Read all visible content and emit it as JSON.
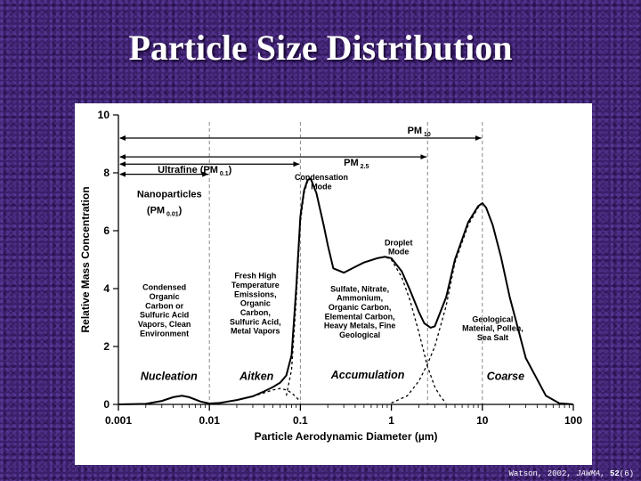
{
  "slide": {
    "title": "Particle Size Distribution",
    "citation": {
      "author": "Watson, 2002, ",
      "journal": "JAWMA",
      "sep": ", ",
      "volume": "52",
      "issue": "(6)"
    }
  },
  "colors": {
    "background": "#3a1f6b",
    "title": "#ffffff",
    "plot": "#000000",
    "guides": "#888888"
  },
  "chart_data": {
    "type": "line",
    "xlabel": "Particle Aerodynamic Diameter (µm)",
    "ylabel": "Relative Mass Concentration",
    "x_scale": "log",
    "xlim": [
      0.001,
      100
    ],
    "ylim": [
      0,
      10
    ],
    "x_ticks": [
      {
        "value": 0.001,
        "label": "0.001"
      },
      {
        "value": 0.01,
        "label": "0.01"
      },
      {
        "value": 0.1,
        "label": "0.1"
      },
      {
        "value": 1,
        "label": "1"
      },
      {
        "value": 10,
        "label": "10"
      },
      {
        "value": 100,
        "label": "100"
      }
    ],
    "y_ticks": [
      {
        "value": 0,
        "label": "0"
      },
      {
        "value": 2,
        "label": "2"
      },
      {
        "value": 4,
        "label": "4"
      },
      {
        "value": 6,
        "label": "6"
      },
      {
        "value": 8,
        "label": "8"
      },
      {
        "value": 10,
        "label": "10"
      }
    ],
    "grid": false,
    "total_curve": {
      "x": [
        0.001,
        0.002,
        0.003,
        0.004,
        0.005,
        0.006,
        0.008,
        0.01,
        0.013,
        0.02,
        0.03,
        0.04,
        0.05,
        0.06,
        0.07,
        0.08,
        0.09,
        0.1,
        0.11,
        0.12,
        0.13,
        0.15,
        0.18,
        0.2,
        0.23,
        0.3,
        0.4,
        0.5,
        0.7,
        0.85,
        1,
        1.3,
        1.6,
        2,
        2.3,
        2.7,
        3,
        4,
        5,
        7,
        9,
        10,
        11,
        13,
        16,
        20,
        30,
        50,
        70,
        100
      ],
      "y": [
        0,
        0.02,
        0.12,
        0.25,
        0.3,
        0.25,
        0.1,
        0.03,
        0.05,
        0.15,
        0.28,
        0.45,
        0.6,
        0.75,
        1.0,
        1.7,
        4.0,
        6.5,
        7.4,
        7.75,
        7.8,
        7.3,
        6.2,
        5.5,
        4.7,
        4.55,
        4.75,
        4.9,
        5.05,
        5.1,
        5.05,
        4.6,
        3.95,
        3.2,
        2.8,
        2.65,
        2.7,
        3.7,
        5.0,
        6.3,
        6.85,
        6.95,
        6.8,
        6.2,
        5.1,
        3.7,
        1.6,
        0.3,
        0.04,
        0.0
      ]
    },
    "mode_curves": [
      {
        "name": "Nucleation",
        "x": [
          0.001,
          0.002,
          0.003,
          0.004,
          0.005,
          0.006,
          0.008,
          0.01
        ],
        "y": [
          0,
          0.02,
          0.12,
          0.25,
          0.3,
          0.25,
          0.1,
          0.03
        ]
      },
      {
        "name": "Aitken",
        "x": [
          0.02,
          0.03,
          0.04,
          0.05,
          0.06,
          0.07,
          0.08,
          0.09,
          0.1
        ],
        "y": [
          0.15,
          0.28,
          0.4,
          0.5,
          0.55,
          0.5,
          0.4,
          0.25,
          0.1
        ]
      },
      {
        "name": "Accumulation",
        "x": [
          0.07,
          0.08,
          0.09,
          0.1,
          0.11,
          0.12,
          0.13,
          0.15,
          0.18,
          0.2,
          0.23,
          0.3,
          0.4,
          0.5,
          0.7,
          0.85,
          1,
          1.3,
          1.6,
          2,
          2.5,
          3,
          3.5,
          4
        ],
        "y": [
          0.3,
          1.2,
          3.6,
          6.3,
          7.3,
          7.7,
          7.78,
          7.3,
          6.2,
          5.5,
          4.7,
          4.55,
          4.75,
          4.9,
          5.05,
          5.1,
          5.0,
          4.4,
          3.6,
          2.5,
          1.3,
          0.6,
          0.25,
          0.05
        ]
      },
      {
        "name": "Coarse",
        "x": [
          1,
          1.5,
          2,
          2.5,
          3,
          4,
          5,
          7,
          9,
          10,
          11,
          13,
          16,
          20,
          30,
          50,
          70,
          100
        ],
        "y": [
          0.05,
          0.3,
          0.8,
          1.4,
          2.0,
          3.4,
          4.9,
          6.2,
          6.8,
          6.95,
          6.8,
          6.2,
          5.1,
          3.7,
          1.6,
          0.3,
          0.04,
          0
        ]
      }
    ],
    "guide_lines_x": [
      0.01,
      0.1,
      2.5,
      10
    ],
    "range_arrows": [
      {
        "label": "PM",
        "sub": "10",
        "x_from": 0.001,
        "x_to": 10,
        "y": 9.2,
        "label_x": 1.5,
        "label_y": 9.35
      },
      {
        "label": "PM",
        "sub": "2.5",
        "x_from": 0.001,
        "x_to": 2.5,
        "y": 8.55,
        "label_x": 0.3,
        "label_y": 8.25
      },
      {
        "label": "Ultrafine (PM",
        "sub": "0.1",
        "close": ")",
        "x_from": 0.001,
        "x_to": 0.1,
        "y": 8.3,
        "label_x": 0.0027,
        "label_y": 8.0
      },
      {
        "label": "Nanoparticles",
        "x_from": 0.001,
        "x_to": 0.01,
        "y": 7.95,
        "label_x": 0.0016,
        "label_y": 7.15
      }
    ],
    "annotations": [
      {
        "id": "nano-sub",
        "lines": [
          "(PM"
        ],
        "sub": "0.01",
        "close": ")",
        "x": 0.0032,
        "y": 6.6,
        "size": 11,
        "anchor": "middle"
      },
      {
        "id": "condensation-mode",
        "lines": [
          "Condensation",
          "Mode"
        ],
        "x": 0.17,
        "y": 7.75,
        "size": 9,
        "anchor": "middle"
      },
      {
        "id": "droplet-mode",
        "lines": [
          "Droplet",
          "Mode"
        ],
        "x": 1.2,
        "y": 5.5,
        "size": 9,
        "anchor": "middle"
      },
      {
        "id": "nucleation-sources",
        "lines": [
          "Condensed",
          "Organic",
          "Carbon or",
          "Sulfuric Acid",
          "Vapors, Clean",
          "Environment"
        ],
        "x": 0.0032,
        "y": 3.95,
        "size": 9,
        "anchor": "middle"
      },
      {
        "id": "aitken-sources",
        "lines": [
          "Fresh High",
          "Temperature",
          "Emissions,",
          "Organic",
          "Carbon,",
          "Sulfuric Acid,",
          "Metal Vapors"
        ],
        "x": 0.032,
        "y": 4.35,
        "size": 9,
        "anchor": "middle"
      },
      {
        "id": "accumulation-sources",
        "lines": [
          "Sulfate, Nitrate,",
          "Ammonium,",
          "Organic Carbon,",
          "Elemental Carbon,",
          "Heavy Metals, Fine",
          "Geological"
        ],
        "x": 0.45,
        "y": 3.9,
        "size": 9,
        "anchor": "middle"
      },
      {
        "id": "coarse-sources",
        "lines": [
          "Geological",
          "Material, Pollen,",
          "Sea Salt"
        ],
        "x": 13,
        "y": 2.85,
        "size": 9,
        "anchor": "middle"
      }
    ],
    "mode_labels": [
      {
        "text": "Nucleation",
        "x": 0.0036,
        "y": 0.85
      },
      {
        "text": "Aitken",
        "x": 0.033,
        "y": 0.85
      },
      {
        "text": "Accumulation",
        "x": 0.55,
        "y": 0.9
      },
      {
        "text": "Coarse",
        "x": 18,
        "y": 0.85
      }
    ]
  }
}
